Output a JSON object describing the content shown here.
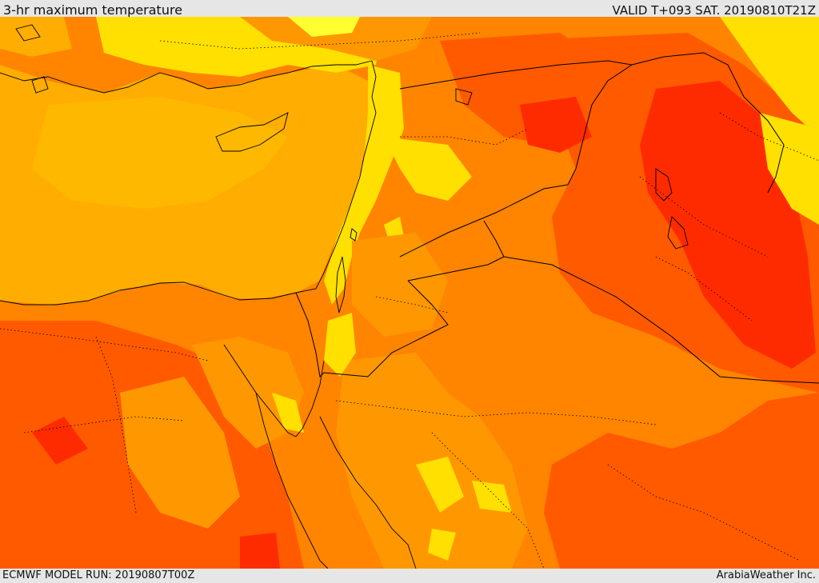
{
  "header": {
    "title": "3-hr maximum temperature",
    "valid": "VALID T+093 SAT. 20190810T21Z"
  },
  "footer": {
    "model_run": "ECMWF MODEL RUN: 20190807T00Z",
    "credit": "ArabiaWeather Inc."
  },
  "palette": {
    "sea": "#ffad00",
    "land_orange": "#ff8400",
    "land_deep": "#ff5a00",
    "land_red": "#ff2b00",
    "land_yellow": "#ffe000",
    "pale_yellow": "#ffff30",
    "coast": "#000000"
  }
}
